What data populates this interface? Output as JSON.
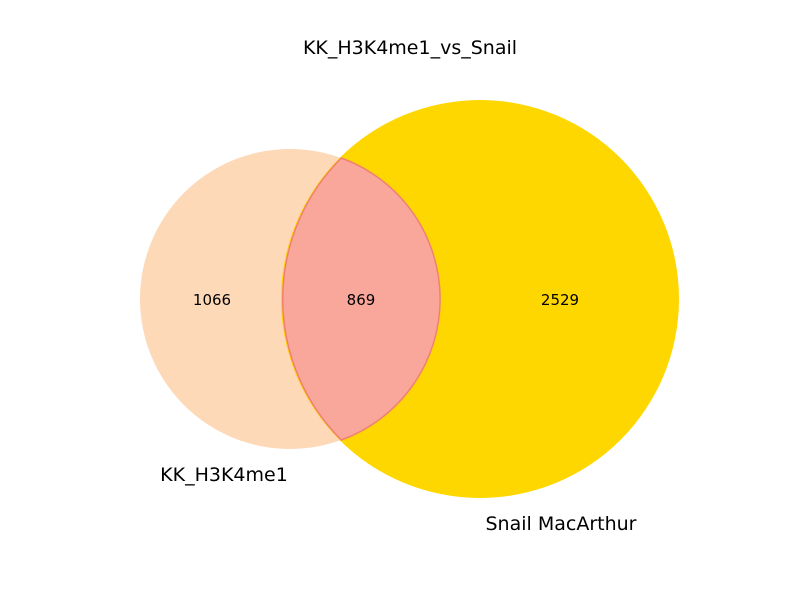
{
  "chart_data": {
    "type": "venn",
    "title": "KK_H3K4me1_vs_Snail",
    "sets": [
      {
        "name": "KK_H3K4me1",
        "only_count": "1066",
        "color": "#fdd9b8"
      },
      {
        "name": "Snail MacArthur",
        "only_count": "2529",
        "color": "#ffd700"
      }
    ],
    "intersection": {
      "count": "869",
      "color": "#f9a79b",
      "edge_color": "#f08072"
    }
  }
}
